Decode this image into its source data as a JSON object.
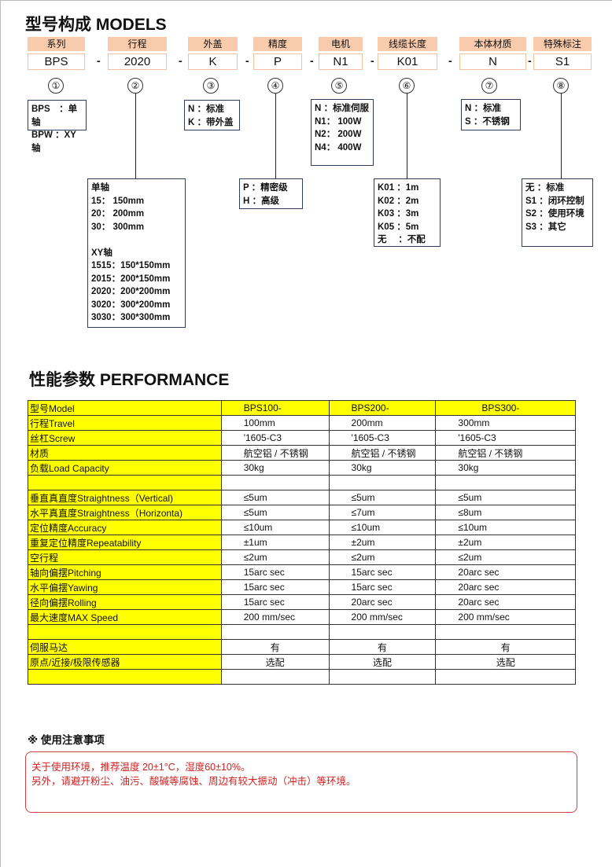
{
  "models": {
    "title": "型号构成 MODELS",
    "fields": [
      {
        "label": "系列",
        "value": "BPS",
        "num": "①"
      },
      {
        "label": "行程",
        "value": "2020",
        "num": "②"
      },
      {
        "label": "外盖",
        "value": "K",
        "num": "③"
      },
      {
        "label": "精度",
        "value": "P",
        "num": "④"
      },
      {
        "label": "电机",
        "value": "N1",
        "num": "⑤"
      },
      {
        "label": "线缆长度",
        "value": "K01",
        "num": "⑥"
      },
      {
        "label": "本体材质",
        "value": "N",
        "num": "⑦"
      },
      {
        "label": "特殊标注",
        "value": "S1",
        "num": "⑧"
      }
    ],
    "separator": "-",
    "options": {
      "series": [
        "BPS　：单轴",
        "BPW ：XY轴"
      ],
      "travel": [
        "单轴",
        "15：  150mm",
        "20：  200mm",
        "30：  300mm",
        "",
        "XY轴",
        "1515：150*150mm",
        "2015：200*150mm",
        "2020：200*200mm",
        "3020：300*200mm",
        "3030：300*300mm"
      ],
      "cover": [
        "N ：标准",
        "K ：带外盖"
      ],
      "precision": [
        "P ：精密级",
        "H ：高级"
      ],
      "motor": [
        "N ：标准伺服",
        "N1：  100W",
        "N2：  200W",
        "N4：  400W"
      ],
      "cable": [
        "K01 ：1m",
        "K02 ：2m",
        "K03 ：3m",
        "K05 ：5m",
        "无　 ：不配"
      ],
      "material": [
        "N ：标准",
        "S ：不锈钢"
      ],
      "special": [
        "无 ：标准",
        "S1 ：闭环控制",
        "S2 ：使用环境",
        "S3 ：其它"
      ]
    }
  },
  "performance": {
    "title": "性能参数  PERFORMANCE",
    "rows": [
      [
        "型号Model",
        "BPS100-",
        "BPS200-",
        "BPS300-"
      ],
      [
        "行程Travel",
        "100mm",
        "200mm",
        "300mm"
      ],
      [
        "丝杠Screw",
        "'1605-C3",
        "'1605-C3",
        "'1605-C3"
      ],
      [
        "材质",
        "航空铝 / 不锈钢",
        "航空铝 / 不锈钢",
        "航空铝 / 不锈钢"
      ],
      [
        "负载Load Capacity",
        "30kg",
        "30kg",
        "30kg"
      ],
      [
        "",
        "",
        "",
        ""
      ],
      [
        "垂直真直度Straightness（Vertical)",
        "≤5um",
        "≤5um",
        "≤5um"
      ],
      [
        "水平真直度Straightness（Horizonta)",
        "≤5um",
        "≤7um",
        "≤8um"
      ],
      [
        "定位精度Accuracy",
        "≤10um",
        "≤10um",
        "≤10um"
      ],
      [
        "重复定位精度Repeatability",
        "±1um",
        "±2um",
        "±2um"
      ],
      [
        "空行程",
        "≤2um",
        "≤2um",
        "≤2um"
      ],
      [
        "轴向偏摆Pitching",
        "15arc sec",
        "15arc sec",
        "20arc sec"
      ],
      [
        "水平偏摆Yawing",
        "15arc sec",
        "15arc sec",
        "20arc sec"
      ],
      [
        "径向偏摆Rolling",
        "15arc sec",
        "20arc sec",
        "20arc sec"
      ],
      [
        "最大速度MAX Speed",
        "200 mm/sec",
        "200 mm/sec",
        "200 mm/sec"
      ],
      [
        "",
        "",
        "",
        ""
      ],
      [
        "伺服马达",
        "有",
        "有",
        "有"
      ],
      [
        "原点/近接/极限传感器",
        "选配",
        "选配",
        "选配"
      ],
      [
        "",
        "",
        "",
        ""
      ]
    ]
  },
  "notes": {
    "title": "※ 使用注意事项",
    "lines": [
      "关于使用环境，推荐温度 20±1°C，湿度60±10%。",
      "另外，请避开粉尘、油污、酸碱等腐蚀、周边有较大振动（冲击）等环境。"
    ]
  },
  "colors": {
    "header_peach": "#f8cbad",
    "table_yellow": "#ffff00",
    "note_red": "#d02020"
  }
}
